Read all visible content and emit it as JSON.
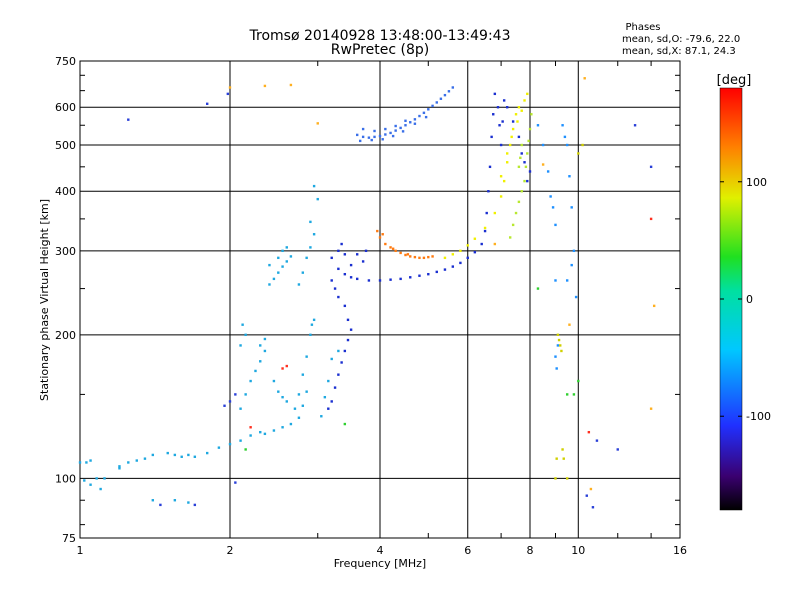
{
  "chart_data": {
    "type": "scatter",
    "title": "Tromsø 20140928 13:48:00-13:49:43",
    "subtitle": "RwPretec (8p)",
    "stats_header": "Phases",
    "stats_line1": "mean, sd,O: -79.6, 22.0",
    "stats_line2": "mean, sd,X:  87.1, 24.3",
    "xlabel": "Frequency [MHz]",
    "ylabel": "Stationary phase Virtual Height [km]",
    "x_scale": "log",
    "y_scale": "log",
    "xlim": [
      1,
      16
    ],
    "ylim": [
      75,
      750
    ],
    "xticks": [
      1,
      2,
      4,
      6,
      8,
      10,
      16
    ],
    "xtick_labels": [
      "1",
      "2",
      "4",
      "6",
      "8",
      "10",
      "16"
    ],
    "yticks": [
      75,
      100,
      200,
      300,
      400,
      500,
      600,
      750
    ],
    "ytick_labels": [
      "75",
      "100",
      "200",
      "300",
      "400",
      "500",
      "600",
      "750"
    ],
    "grid": true,
    "colorbar": {
      "label": "[deg]",
      "range": [
        -180,
        180
      ],
      "ticks": [
        100,
        0,
        -100
      ],
      "tick_labels": [
        "100",
        "0",
        "-100"
      ],
      "colormap": "rainbow"
    },
    "series": [
      {
        "color": "#1ea8e0",
        "points": [
          [
            1.0,
            108
          ],
          [
            1.03,
            108
          ],
          [
            1.05,
            109
          ],
          [
            1.02,
            99
          ],
          [
            1.05,
            97
          ],
          [
            1.08,
            100
          ],
          [
            1.12,
            100
          ],
          [
            1.2,
            106
          ],
          [
            1.25,
            108
          ],
          [
            1.3,
            109
          ],
          [
            1.35,
            110
          ],
          [
            1.4,
            112
          ],
          [
            1.5,
            113
          ],
          [
            1.55,
            112
          ],
          [
            1.6,
            111
          ],
          [
            1.65,
            112
          ],
          [
            1.7,
            111
          ],
          [
            1.8,
            113
          ],
          [
            1.9,
            116
          ],
          [
            2.0,
            118
          ],
          [
            2.1,
            120
          ],
          [
            2.2,
            123
          ],
          [
            2.3,
            125
          ],
          [
            2.35,
            124
          ],
          [
            2.45,
            126
          ],
          [
            2.55,
            128
          ],
          [
            2.65,
            130
          ],
          [
            2.75,
            134
          ],
          [
            2.8,
            142
          ],
          [
            2.85,
            152
          ],
          [
            2.1,
            140
          ],
          [
            2.15,
            150
          ],
          [
            2.2,
            160
          ],
          [
            2.25,
            168
          ],
          [
            2.3,
            176
          ],
          [
            2.35,
            185
          ],
          [
            2.45,
            160
          ],
          [
            2.5,
            152
          ],
          [
            2.55,
            148
          ],
          [
            2.6,
            145
          ],
          [
            2.7,
            140
          ],
          [
            2.75,
            150
          ],
          [
            2.8,
            165
          ],
          [
            2.85,
            180
          ],
          [
            2.9,
            200
          ],
          [
            2.92,
            210
          ],
          [
            2.1,
            190
          ],
          [
            2.15,
            200
          ],
          [
            2.12,
            210
          ],
          [
            2.3,
            190
          ],
          [
            2.35,
            196
          ],
          [
            2.4,
            255
          ],
          [
            2.45,
            262
          ],
          [
            2.5,
            270
          ],
          [
            2.55,
            278
          ],
          [
            2.6,
            285
          ],
          [
            2.65,
            292
          ],
          [
            2.4,
            280
          ],
          [
            2.5,
            290
          ],
          [
            2.55,
            300
          ],
          [
            2.6,
            305
          ],
          [
            2.75,
            255
          ],
          [
            2.8,
            270
          ],
          [
            2.85,
            290
          ],
          [
            2.9,
            305
          ],
          [
            2.95,
            325
          ],
          [
            2.9,
            345
          ],
          [
            3.0,
            385
          ],
          [
            2.95,
            410
          ],
          [
            1.2,
            105
          ],
          [
            1.1,
            95
          ],
          [
            1.55,
            90
          ],
          [
            1.4,
            90
          ],
          [
            1.65,
            89
          ],
          [
            3.05,
            135
          ],
          [
            3.1,
            148
          ],
          [
            3.15,
            160
          ],
          [
            3.2,
            178
          ],
          [
            3.3,
            185
          ],
          [
            2.95,
            215
          ]
        ]
      },
      {
        "color": "#1a2fd0",
        "points": [
          [
            3.2,
            290
          ],
          [
            3.3,
            275
          ],
          [
            3.4,
            268
          ],
          [
            3.5,
            264
          ],
          [
            3.6,
            262
          ],
          [
            3.8,
            260
          ],
          [
            4.0,
            260
          ],
          [
            4.2,
            261
          ],
          [
            4.4,
            262
          ],
          [
            4.6,
            264
          ],
          [
            4.8,
            266
          ],
          [
            5.0,
            268
          ],
          [
            5.2,
            271
          ],
          [
            5.4,
            274
          ],
          [
            5.6,
            278
          ],
          [
            5.8,
            283
          ],
          [
            6.0,
            290
          ],
          [
            6.2,
            298
          ],
          [
            6.4,
            310
          ],
          [
            6.5,
            330
          ],
          [
            6.55,
            360
          ],
          [
            6.6,
            400
          ],
          [
            6.65,
            450
          ],
          [
            6.7,
            520
          ],
          [
            6.75,
            580
          ],
          [
            6.8,
            640
          ],
          [
            6.9,
            600
          ],
          [
            6.95,
            550
          ],
          [
            7.0,
            500
          ],
          [
            7.05,
            560
          ],
          [
            7.1,
            620
          ],
          [
            7.2,
            600
          ],
          [
            7.4,
            560
          ],
          [
            7.6,
            520
          ],
          [
            7.8,
            460
          ],
          [
            7.9,
            420
          ],
          [
            8.0,
            440
          ],
          [
            7.7,
            480
          ],
          [
            3.3,
            300
          ],
          [
            3.35,
            310
          ],
          [
            3.4,
            295
          ],
          [
            3.2,
            260
          ],
          [
            3.25,
            250
          ],
          [
            3.3,
            240
          ],
          [
            3.4,
            230
          ],
          [
            3.45,
            215
          ],
          [
            3.5,
            205
          ],
          [
            3.45,
            195
          ],
          [
            3.4,
            185
          ],
          [
            3.35,
            175
          ],
          [
            3.3,
            165
          ],
          [
            3.25,
            155
          ],
          [
            3.2,
            145
          ],
          [
            3.15,
            140
          ],
          [
            3.5,
            280
          ],
          [
            3.7,
            285
          ],
          [
            3.6,
            295
          ],
          [
            3.75,
            300
          ]
        ]
      },
      {
        "color": "#3a6fe8",
        "points": [
          [
            3.6,
            525
          ],
          [
            3.7,
            520
          ],
          [
            3.8,
            518
          ],
          [
            3.9,
            520
          ],
          [
            4.0,
            522
          ],
          [
            4.1,
            526
          ],
          [
            4.2,
            530
          ],
          [
            4.3,
            536
          ],
          [
            4.4,
            543
          ],
          [
            4.5,
            550
          ],
          [
            4.6,
            558
          ],
          [
            4.7,
            566
          ],
          [
            4.8,
            575
          ],
          [
            4.9,
            584
          ],
          [
            5.0,
            594
          ],
          [
            5.1,
            604
          ],
          [
            5.2,
            614
          ],
          [
            5.3,
            625
          ],
          [
            5.4,
            636
          ],
          [
            5.5,
            648
          ],
          [
            5.6,
            660
          ],
          [
            3.7,
            540
          ],
          [
            3.9,
            535
          ],
          [
            4.1,
            540
          ],
          [
            4.3,
            548
          ],
          [
            4.5,
            562
          ],
          [
            3.65,
            510
          ],
          [
            3.85,
            512
          ],
          [
            4.05,
            514
          ],
          [
            4.25,
            522
          ],
          [
            4.45,
            534
          ],
          [
            4.7,
            554
          ],
          [
            4.95,
            572
          ]
        ]
      },
      {
        "color": "#ff7a10",
        "points": [
          [
            4.0,
            320
          ],
          [
            4.1,
            310
          ],
          [
            4.2,
            305
          ],
          [
            4.3,
            300
          ],
          [
            4.4,
            297
          ],
          [
            4.5,
            294
          ],
          [
            4.6,
            292
          ],
          [
            4.7,
            291
          ],
          [
            4.8,
            290
          ],
          [
            4.9,
            290
          ],
          [
            5.0,
            291
          ],
          [
            5.1,
            292
          ],
          [
            3.95,
            330
          ],
          [
            4.05,
            325
          ],
          [
            4.25,
            303
          ],
          [
            4.55,
            295
          ]
        ]
      },
      {
        "color": "#f0f000",
        "points": [
          [
            5.4,
            290
          ],
          [
            5.6,
            295
          ],
          [
            5.8,
            300
          ],
          [
            6.0,
            308
          ],
          [
            6.2,
            318
          ],
          [
            6.5,
            335
          ],
          [
            6.8,
            360
          ],
          [
            7.0,
            390
          ],
          [
            7.1,
            420
          ],
          [
            7.2,
            460
          ],
          [
            7.3,
            500
          ],
          [
            7.4,
            540
          ],
          [
            7.5,
            580
          ],
          [
            7.6,
            600
          ],
          [
            7.8,
            620
          ],
          [
            7.9,
            640
          ],
          [
            7.0,
            430
          ],
          [
            7.2,
            480
          ],
          [
            7.35,
            520
          ],
          [
            7.55,
            560
          ],
          [
            7.7,
            590
          ]
        ]
      },
      {
        "color": "#b8e830",
        "points": [
          [
            7.3,
            320
          ],
          [
            7.4,
            340
          ],
          [
            7.5,
            360
          ],
          [
            7.6,
            380
          ],
          [
            7.7,
            400
          ],
          [
            7.8,
            420
          ],
          [
            7.85,
            450
          ],
          [
            7.9,
            480
          ],
          [
            7.95,
            510
          ],
          [
            8.0,
            540
          ],
          [
            8.05,
            580
          ],
          [
            7.6,
            450
          ],
          [
            7.65,
            470
          ],
          [
            7.7,
            500
          ]
        ]
      },
      {
        "color": "#1e90ff",
        "points": [
          [
            8.3,
            550
          ],
          [
            8.5,
            500
          ],
          [
            8.7,
            440
          ],
          [
            8.8,
            390
          ],
          [
            8.9,
            370
          ],
          [
            9.0,
            340
          ],
          [
            9.0,
            260
          ],
          [
            9.3,
            550
          ],
          [
            9.4,
            520
          ],
          [
            9.5,
            500
          ],
          [
            9.6,
            430
          ],
          [
            9.7,
            370
          ],
          [
            9.8,
            300
          ],
          [
            9.7,
            280
          ],
          [
            9.5,
            260
          ],
          [
            9.9,
            240
          ],
          [
            9.0,
            180
          ],
          [
            9.05,
            170
          ],
          [
            9.1,
            190
          ]
        ]
      },
      {
        "color": "#d0d000",
        "points": [
          [
            9.1,
            200
          ],
          [
            9.15,
            195
          ],
          [
            9.2,
            190
          ],
          [
            9.25,
            185
          ],
          [
            9.0,
            100
          ],
          [
            9.05,
            110
          ],
          [
            9.3,
            115
          ],
          [
            9.35,
            110
          ],
          [
            9.5,
            100
          ],
          [
            10.2,
            500
          ],
          [
            10.0,
            480
          ]
        ]
      },
      {
        "color": "#2a40d8",
        "points": [
          [
            1.25,
            565
          ],
          [
            1.8,
            610
          ],
          [
            1.98,
            640
          ],
          [
            10.4,
            92
          ],
          [
            10.7,
            87
          ],
          [
            10.9,
            120
          ],
          [
            12.0,
            115
          ],
          [
            13.0,
            550
          ],
          [
            14.0,
            450
          ],
          [
            1.7,
            88
          ],
          [
            1.45,
            88
          ],
          [
            2.05,
            98
          ],
          [
            1.95,
            142
          ],
          [
            2.0,
            145
          ],
          [
            2.05,
            150
          ]
        ]
      },
      {
        "color": "#ff3020",
        "points": [
          [
            2.55,
            170
          ],
          [
            2.6,
            172
          ],
          [
            14.0,
            350
          ],
          [
            10.5,
            125
          ],
          [
            2.2,
            128
          ]
        ]
      },
      {
        "color": "#ffb020",
        "points": [
          [
            2.0,
            660
          ],
          [
            2.35,
            665
          ],
          [
            2.65,
            668
          ],
          [
            3.0,
            555
          ],
          [
            10.6,
            95
          ],
          [
            14.0,
            140
          ],
          [
            14.2,
            230
          ],
          [
            10.3,
            690
          ],
          [
            8.5,
            455
          ],
          [
            9.6,
            210
          ],
          [
            6.8,
            310
          ]
        ]
      },
      {
        "color": "#30d030",
        "points": [
          [
            9.8,
            150
          ],
          [
            9.5,
            150
          ],
          [
            10.0,
            160
          ],
          [
            8.3,
            250
          ],
          [
            2.15,
            115
          ],
          [
            3.4,
            130
          ]
        ]
      }
    ]
  }
}
